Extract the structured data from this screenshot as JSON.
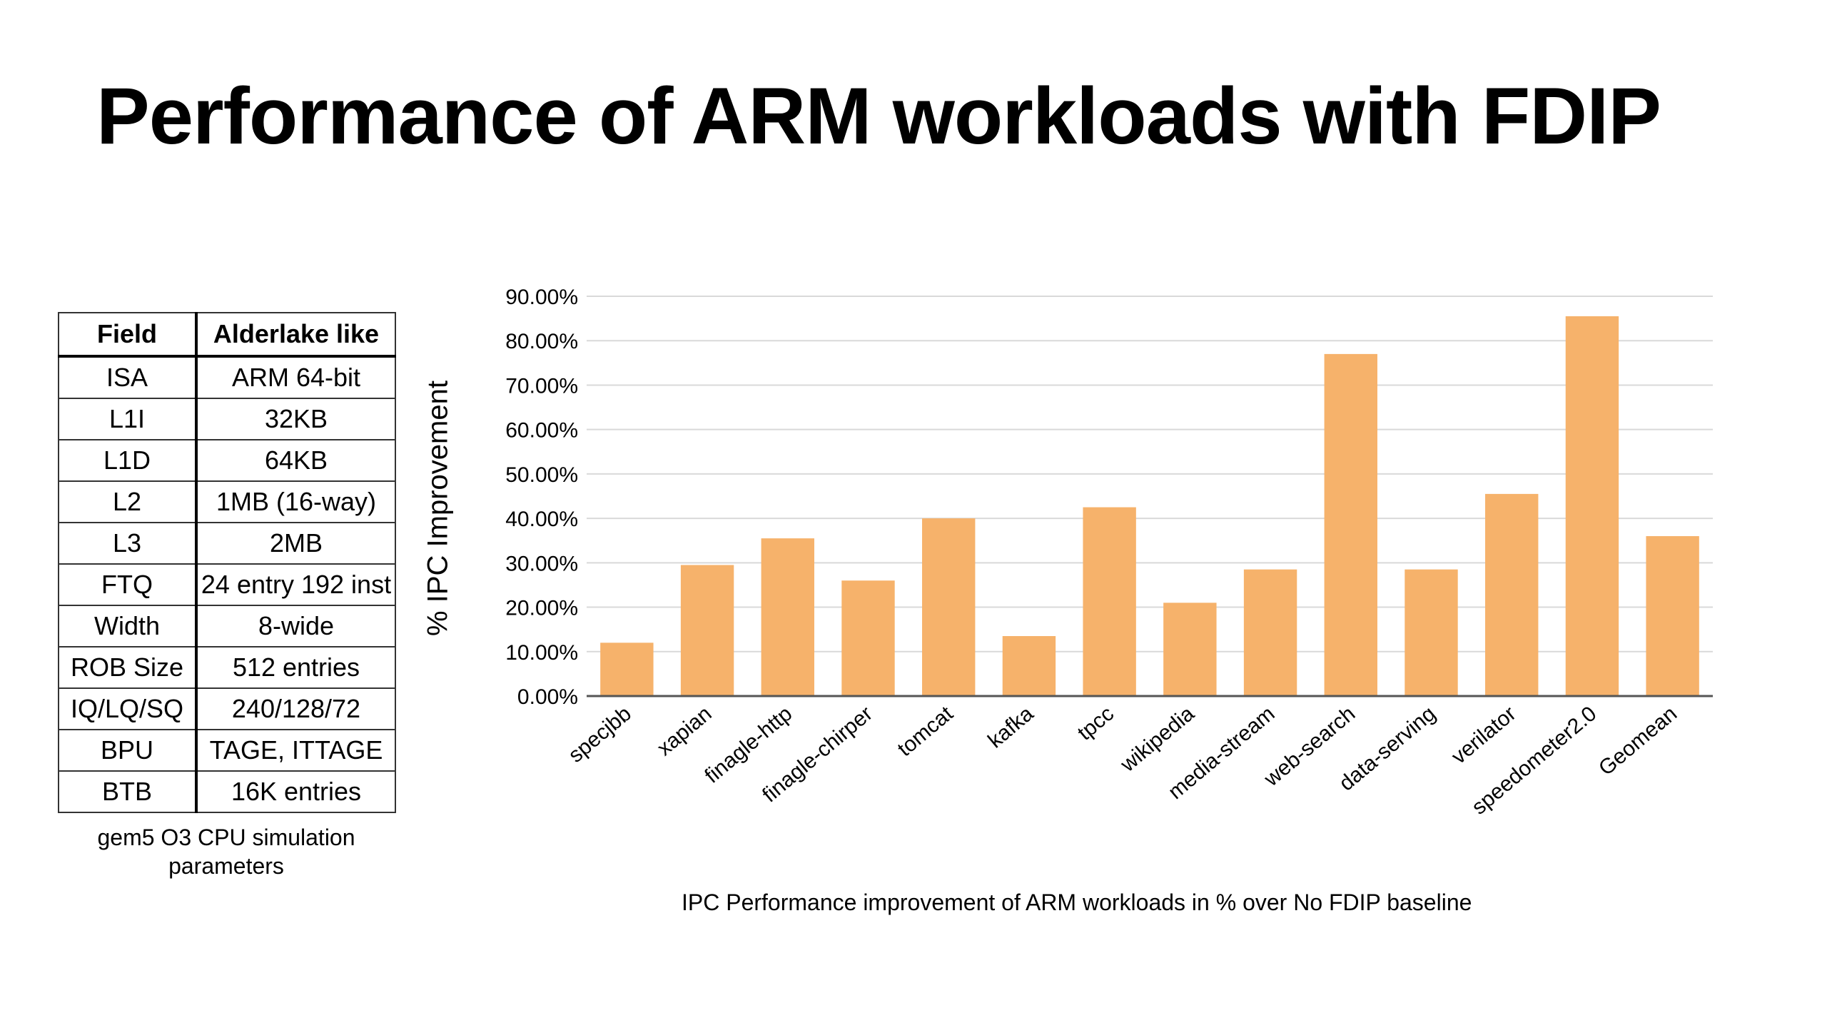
{
  "slide": {
    "title": "Performance of ARM workloads with FDIP"
  },
  "params_table": {
    "headers": [
      "Field",
      "Alderlake like"
    ],
    "rows": [
      [
        "ISA",
        "ARM 64-bit"
      ],
      [
        "L1I",
        "32KB"
      ],
      [
        "L1D",
        "64KB"
      ],
      [
        "L2",
        "1MB (16-way)"
      ],
      [
        "L3",
        "2MB"
      ],
      [
        "FTQ",
        "24 entry 192 inst"
      ],
      [
        "Width",
        "8-wide"
      ],
      [
        "ROB Size",
        "512 entries"
      ],
      [
        "IQ/LQ/SQ",
        "240/128/72"
      ],
      [
        "BPU",
        "TAGE, ITTAGE"
      ],
      [
        "BTB",
        "16K entries"
      ]
    ],
    "caption_line1": "gem5 O3 CPU simulation",
    "caption_line2": "parameters"
  },
  "chart_data": {
    "type": "bar",
    "title": "",
    "caption": "IPC Performance improvement of ARM workloads in % over No FDIP baseline",
    "ylabel": "% IPC Improvement",
    "xlabel": "",
    "categories": [
      "specjbb",
      "xapian",
      "finagle-http",
      "finagle-chirper",
      "tomcat",
      "kafka",
      "tpcc",
      "wikipedia",
      "media-stream",
      "web-search",
      "data-serving",
      "verilator",
      "speedometer2.0",
      "Geomean"
    ],
    "values": [
      12.0,
      29.5,
      35.5,
      26.0,
      40.0,
      13.5,
      42.5,
      21.0,
      28.5,
      77.0,
      28.5,
      45.5,
      85.5,
      36.0
    ],
    "ylim": [
      0,
      90
    ],
    "yticks": [
      "0.00%",
      "10.00%",
      "20.00%",
      "30.00%",
      "40.00%",
      "50.00%",
      "60.00%",
      "70.00%",
      "80.00%",
      "90.00%"
    ],
    "grid": true,
    "bar_color": "#F6B26B",
    "grid_color": "#d9d9d9",
    "axis_color": "#555555"
  }
}
